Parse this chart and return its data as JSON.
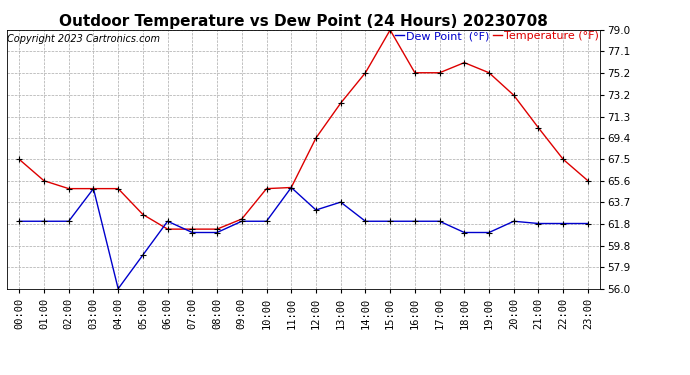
{
  "title": "Outdoor Temperature vs Dew Point (24 Hours) 20230708",
  "copyright": "Copyright 2023 Cartronics.com",
  "legend_dew": "Dew Point  (°F)",
  "legend_temp": "Temperature (°F)",
  "hours": [
    0,
    1,
    2,
    3,
    4,
    5,
    6,
    7,
    8,
    9,
    10,
    11,
    12,
    13,
    14,
    15,
    16,
    17,
    18,
    19,
    20,
    21,
    22,
    23
  ],
  "temperature": [
    67.5,
    65.6,
    64.9,
    64.9,
    64.9,
    62.6,
    61.3,
    61.3,
    61.3,
    62.2,
    64.9,
    65.0,
    69.4,
    72.5,
    75.2,
    79.0,
    75.2,
    75.2,
    76.1,
    75.2,
    73.2,
    70.3,
    67.5,
    65.6
  ],
  "dew_point": [
    62.0,
    62.0,
    62.0,
    64.9,
    56.0,
    59.0,
    62.0,
    61.0,
    61.0,
    62.0,
    62.0,
    65.0,
    63.0,
    63.7,
    62.0,
    62.0,
    62.0,
    62.0,
    61.0,
    61.0,
    62.0,
    61.8,
    61.8,
    61.8
  ],
  "temp_color": "#dd0000",
  "dew_color": "#0000cc",
  "marker_color": "#000000",
  "ylim_min": 56.0,
  "ylim_max": 79.0,
  "yticks": [
    56.0,
    57.9,
    59.8,
    61.8,
    63.7,
    65.6,
    67.5,
    69.4,
    71.3,
    73.2,
    75.2,
    77.1,
    79.0
  ],
  "background_color": "#ffffff",
  "grid_color": "#aaaaaa",
  "title_fontsize": 11,
  "copyright_fontsize": 7,
  "legend_fontsize": 8,
  "tick_fontsize": 7.5
}
